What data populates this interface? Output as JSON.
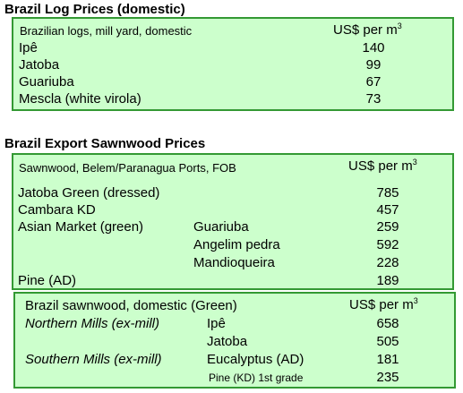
{
  "log_prices": {
    "title": "Brazil Log Prices (domestic)",
    "header_label": "Brazilian logs, mill yard, domestic",
    "unit_label": "US$ per m",
    "unit_sup": "3",
    "rows": [
      {
        "species": "Ipê",
        "price": "140"
      },
      {
        "species": "Jatoba",
        "price": "99"
      },
      {
        "species": "Guariuba",
        "price": "67"
      },
      {
        "species": "Mescla (white virola)",
        "price": "73"
      }
    ]
  },
  "export_sawnwood": {
    "title": "Brazil Export Sawnwood Prices",
    "header_label": "Sawnwood, Belem/Paranagua Ports, FOB",
    "unit_label": "US$ per m",
    "unit_sup": "3",
    "rows": [
      {
        "category": "Jatoba Green (dressed)",
        "species": "",
        "price": "785"
      },
      {
        "category": "Cambara KD",
        "species": "",
        "price": "457"
      },
      {
        "category": "Asian Market (green)",
        "species": "Guariuba",
        "price": "259"
      },
      {
        "category": "",
        "species": "Angelim pedra",
        "price": "592"
      },
      {
        "category": "",
        "species": "Mandioqueira",
        "price": "228"
      },
      {
        "category": "Pine (AD)",
        "species": "",
        "price": "189"
      }
    ]
  },
  "domestic_sawnwood": {
    "header_label": "Brazil sawnwood, domestic (Green)",
    "unit_label": "US$ per m",
    "unit_sup": "3",
    "rows": [
      {
        "region": "Northern Mills (ex-mill)",
        "species": "Ipê",
        "price": "658"
      },
      {
        "region": "",
        "species": "Jatoba",
        "price": "505"
      },
      {
        "region": "Southern Mills (ex-mill)",
        "species": "Eucalyptus (AD)",
        "price": "181"
      },
      {
        "region": "",
        "species": "Pine (KD) 1st grade",
        "price": "235"
      }
    ]
  }
}
